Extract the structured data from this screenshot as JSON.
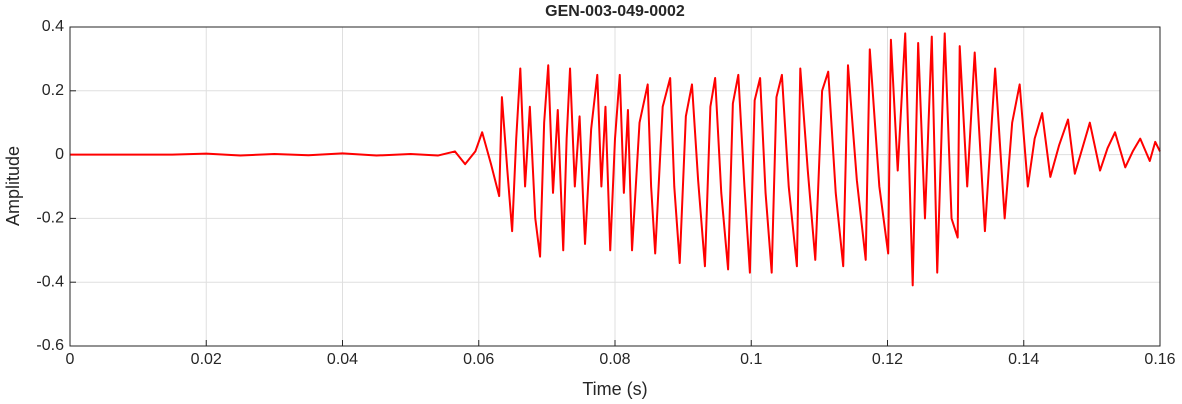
{
  "chart_data": {
    "type": "line",
    "title": "GEN-003-049-0002",
    "xlabel": "Time (s)",
    "ylabel": "Amplitude",
    "x": [
      0,
      0.015,
      0.02,
      0.025,
      0.03,
      0.035,
      0.04,
      0.045,
      0.05,
      0.054,
      0.0565,
      0.058,
      0.0595,
      0.0605,
      0.0618,
      0.063,
      0.0634,
      0.0642,
      0.0649,
      0.0655,
      0.0661,
      0.0668,
      0.0675,
      0.0683,
      0.069,
      0.0696,
      0.0702,
      0.0709,
      0.0716,
      0.0724,
      0.0729,
      0.0734,
      0.0741,
      0.0748,
      0.0756,
      0.0765,
      0.0774,
      0.078,
      0.0786,
      0.0793,
      0.08,
      0.0807,
      0.0813,
      0.0819,
      0.0825,
      0.0836,
      0.0848,
      0.0853,
      0.0859,
      0.087,
      0.0881,
      0.0887,
      0.0895,
      0.0904,
      0.0913,
      0.0922,
      0.0932,
      0.094,
      0.0947,
      0.0956,
      0.0966,
      0.0973,
      0.0981,
      0.099,
      0.0998,
      0.1005,
      0.1013,
      0.1021,
      0.103,
      0.1037,
      0.1045,
      0.1055,
      0.1067,
      0.1072,
      0.1083,
      0.1094,
      0.1104,
      0.1113,
      0.1124,
      0.1135,
      0.1142,
      0.1155,
      0.1168,
      0.1174,
      0.1188,
      0.1201,
      0.1205,
      0.1215,
      0.1226,
      0.1237,
      0.1245,
      0.1255,
      0.1265,
      0.1273,
      0.1284,
      0.1294,
      0.1303,
      0.1306,
      0.1317,
      0.1328,
      0.1343,
      0.1358,
      0.1372,
      0.1383,
      0.1394,
      0.1406,
      0.1416,
      0.1427,
      0.1439,
      0.1452,
      0.1465,
      0.1475,
      0.1486,
      0.1497,
      0.1512,
      0.1523,
      0.1534,
      0.1549,
      0.156,
      0.1571,
      0.1585,
      0.1593,
      0.16
    ],
    "series": [
      {
        "color": "#ff0000",
        "values": [
          0,
          0,
          0.003,
          -0.003,
          0.002,
          -0.002,
          0.004,
          -0.003,
          0.002,
          -0.003,
          0.01,
          -0.03,
          0.01,
          0.07,
          -0.03,
          -0.13,
          0.18,
          -0.05,
          -0.24,
          0.05,
          0.27,
          -0.1,
          0.15,
          -0.2,
          -0.32,
          0.1,
          0.28,
          -0.12,
          0.14,
          -0.3,
          0.05,
          0.27,
          -0.1,
          0.12,
          -0.28,
          0.08,
          0.25,
          -0.1,
          0.15,
          -0.3,
          0.05,
          0.25,
          -0.12,
          0.14,
          -0.3,
          0.1,
          0.22,
          -0.1,
          -0.31,
          0.15,
          0.24,
          -0.1,
          -0.34,
          0.12,
          0.22,
          -0.08,
          -0.35,
          0.15,
          0.24,
          -0.12,
          -0.36,
          0.16,
          0.25,
          -0.1,
          -0.37,
          0.17,
          0.24,
          -0.12,
          -0.37,
          0.18,
          0.25,
          -0.1,
          -0.35,
          0.27,
          -0.05,
          -0.33,
          0.2,
          0.26,
          -0.12,
          -0.35,
          0.28,
          -0.08,
          -0.33,
          0.33,
          -0.1,
          -0.31,
          0.36,
          -0.05,
          0.38,
          -0.41,
          0.35,
          -0.2,
          0.37,
          -0.37,
          0.38,
          -0.2,
          -0.26,
          0.34,
          -0.1,
          0.32,
          -0.24,
          0.27,
          -0.2,
          0.1,
          0.22,
          -0.1,
          0.05,
          0.13,
          -0.07,
          0.03,
          0.11,
          -0.06,
          0.02,
          0.1,
          -0.05,
          0.02,
          0.07,
          -0.04,
          0.01,
          0.05,
          -0.02,
          0.04,
          0.01
        ]
      }
    ],
    "xlim": [
      0,
      0.16
    ],
    "xticks": [
      0,
      0.02,
      0.04,
      0.06,
      0.08,
      0.1,
      0.12,
      0.14,
      0.16
    ],
    "ylim": [
      -0.6,
      0.4
    ],
    "yticks": [
      -0.6,
      -0.4,
      -0.2,
      0,
      0.2,
      0.4
    ],
    "grid": true
  }
}
